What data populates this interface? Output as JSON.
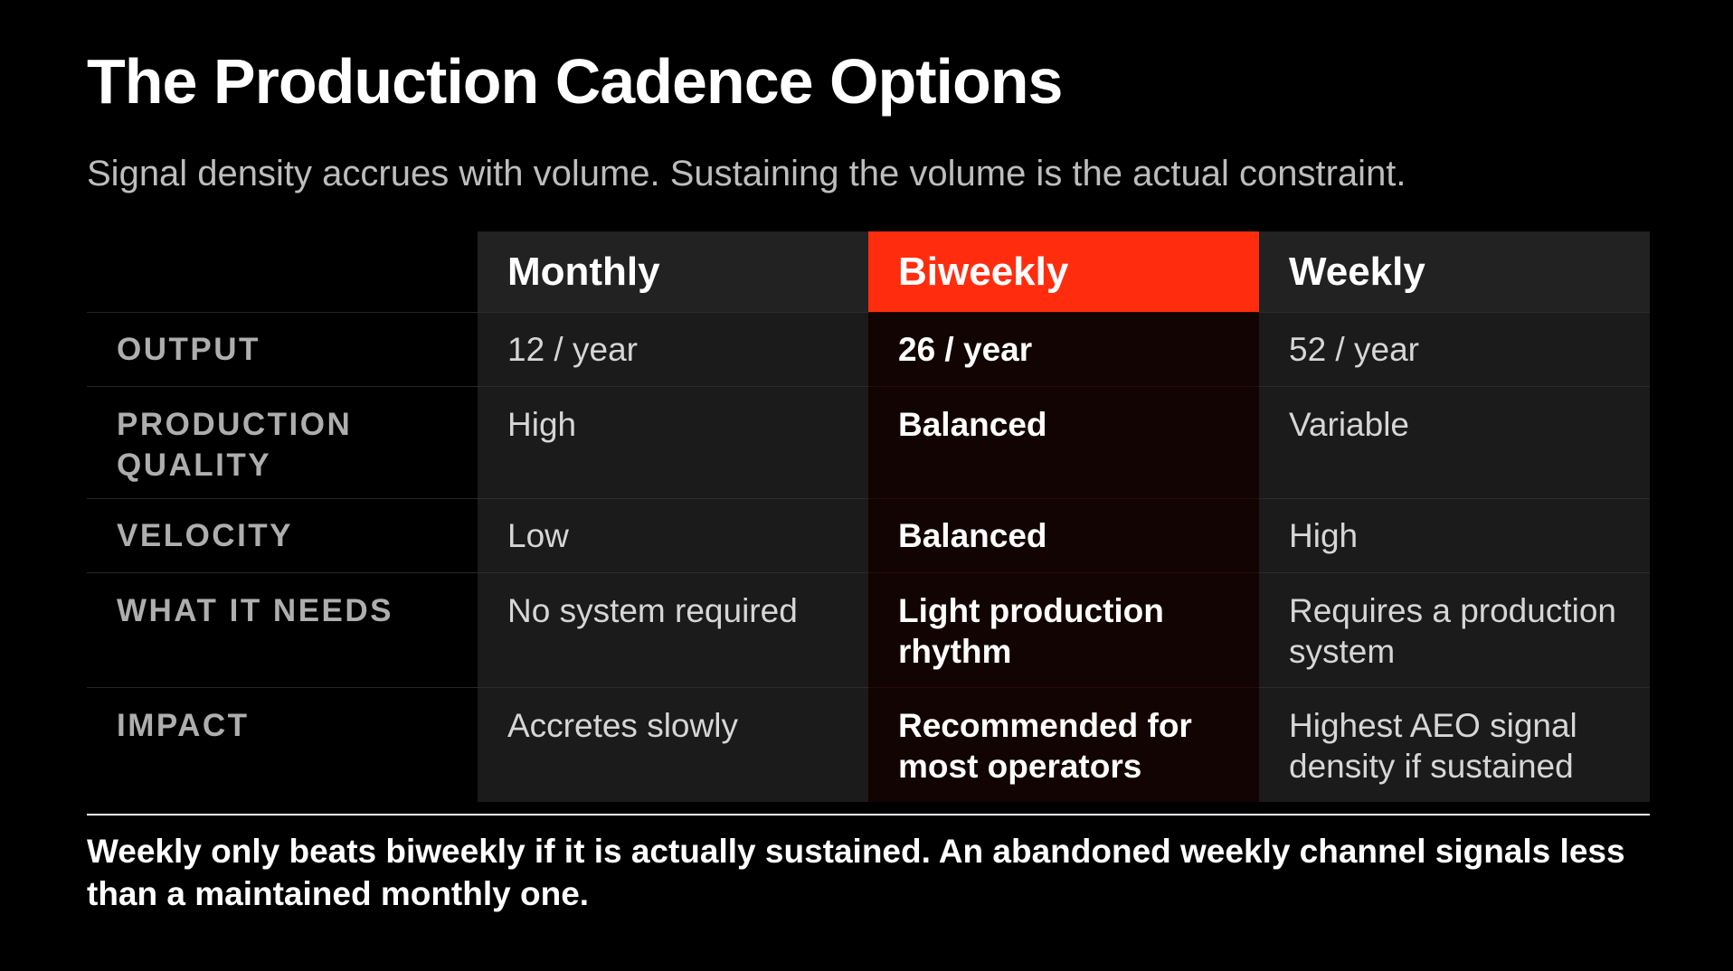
{
  "title": "The Production Cadence Options",
  "subtitle": "Signal density accrues with volume. Sustaining the volume is the actual constraint.",
  "colors": {
    "background": "#000000",
    "highlight": "#ff2d0e",
    "header_bg": "#222222",
    "cell_bg": "#1b1b1b",
    "highlight_cell_bg": "#120402"
  },
  "table": {
    "columns": [
      "Monthly",
      "Biweekly",
      "Weekly"
    ],
    "highlighted_column": "Biweekly",
    "rows": [
      {
        "label": "OUTPUT",
        "values": [
          "12 / year",
          "26 / year",
          "52 / year"
        ]
      },
      {
        "label": "PRODUCTION QUALITY",
        "values": [
          "High",
          "Balanced",
          "Variable"
        ]
      },
      {
        "label": "VELOCITY",
        "values": [
          "Low",
          "Balanced",
          "High"
        ]
      },
      {
        "label": "WHAT IT NEEDS",
        "values": [
          "No system required",
          "Light production rhythm",
          "Requires a production system"
        ]
      },
      {
        "label": "IMPACT",
        "values": [
          "Accretes slowly",
          "Recommended for most operators",
          "Highest AEO signal density if sustained"
        ]
      }
    ]
  },
  "footnote": "Weekly only beats biweekly if it is actually sustained. An abandoned weekly channel signals less than a maintained monthly one."
}
